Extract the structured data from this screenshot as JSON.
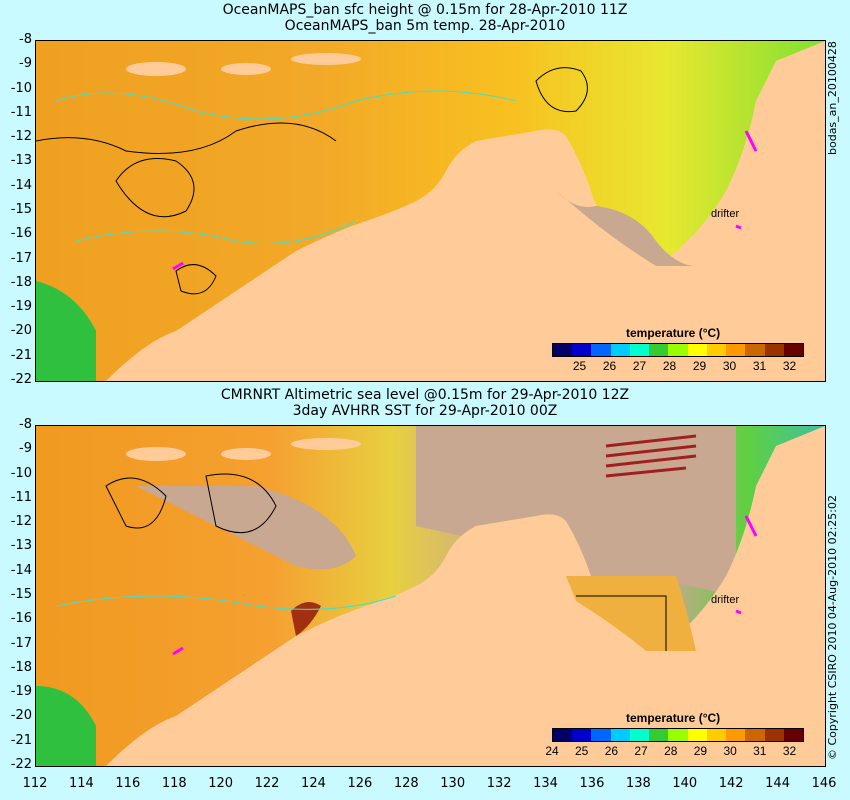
{
  "top_panel": {
    "title_line1": "OceanMAPS_ban sfc height @ 0.15m for 28-Apr-2010 11Z",
    "title_line2": "OceanMAPS_ban 5m temp. 28-Apr-2010",
    "side_label": "bodas_an_20100428",
    "drifter_label": "drifter",
    "colorbar": {
      "title": "temperature (°C)",
      "ticks": [
        "25",
        "26",
        "27",
        "28",
        "29",
        "30",
        "31",
        "32"
      ]
    }
  },
  "bottom_panel": {
    "title_line1": "CMRNRT Altimetric sea level  @0.15m  for 29-Apr-2010 12Z",
    "title_line2": "3day AVHRR SST for 29-Apr-2010 00Z",
    "side_label": "© Copyright CSIRO 2010   04-Aug-2010 02:25:02",
    "drifter_label": "drifter",
    "colorbar": {
      "title": "temperature (°C)",
      "ticks": [
        "24",
        "25",
        "26",
        "27",
        "28",
        "29",
        "30",
        "31",
        "32"
      ]
    }
  },
  "y_axis_labels": [
    "-8",
    "-9",
    "-10",
    "-11",
    "-12",
    "-13",
    "-14",
    "-15",
    "-16",
    "-17",
    "-18",
    "-19",
    "-20",
    "-21",
    "-22"
  ],
  "x_axis_labels": [
    "112",
    "114",
    "116",
    "118",
    "120",
    "122",
    "124",
    "126",
    "128",
    "130",
    "132",
    "134",
    "136",
    "138",
    "140",
    "142",
    "144",
    "146"
  ],
  "colors": {
    "background": "#c8faff",
    "land": "#ffcc99",
    "no_data": "#c8a890",
    "contour": "#40e0d0",
    "drifter_track": "#ff00ff",
    "colorscale": [
      "#000066",
      "#0000cc",
      "#0066ff",
      "#00ccff",
      "#00ffcc",
      "#33cc33",
      "#99ff00",
      "#ffff00",
      "#ffcc00",
      "#ff9900",
      "#cc6600",
      "#993300",
      "#660000"
    ]
  }
}
